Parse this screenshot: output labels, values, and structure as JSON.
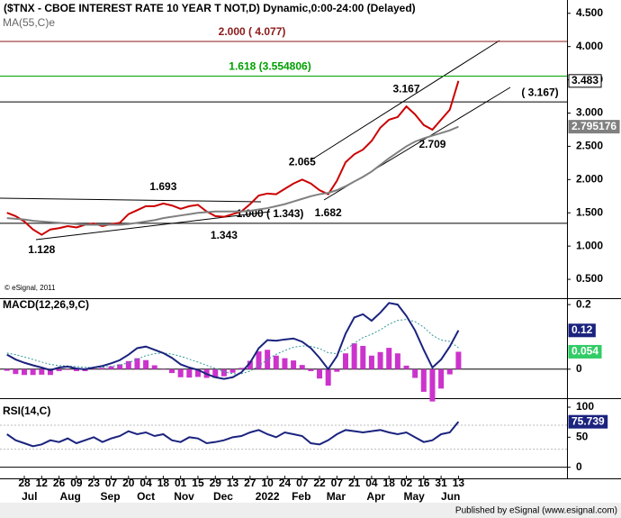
{
  "header": {
    "title": "($TNX - CBOE INTEREST RATE 10 YEAR T NOT,D) Dynamic,0:00-24:00 (Delayed)",
    "copyright": "© eSignal, 2011",
    "footer": "Published by eSignal (www.esignal.com)"
  },
  "chart_data": [
    {
      "type": "line",
      "title": "($TNX - CBOE INTEREST RATE 10 YEAR T NOT,D) Dynamic,0:00-24:00 (Delayed)",
      "x": [
        -2,
        -1,
        0,
        1,
        2,
        3,
        4,
        5,
        6,
        7,
        8,
        9,
        10,
        11,
        12,
        13,
        14,
        15,
        16,
        17,
        18,
        19,
        20,
        21,
        22,
        23,
        24,
        25,
        26,
        27,
        28,
        29,
        30,
        31,
        32,
        33,
        34,
        35,
        36,
        37,
        38,
        39,
        40,
        41,
        42,
        43,
        44,
        45,
        46,
        47,
        48,
        49,
        50
      ],
      "xlim": [
        -2.8,
        62.5
      ],
      "ylim": [
        0.23,
        4.7
      ],
      "yticks": [
        {
          "value": 0.5,
          "label": "0.500"
        },
        {
          "value": 1,
          "label": "1.000"
        },
        {
          "value": 1.5,
          "label": "1.500"
        },
        {
          "value": 2,
          "label": "2.000"
        },
        {
          "value": 2.5,
          "label": "2.500"
        },
        {
          "value": 3,
          "label": "3.000"
        },
        {
          "value": 3.5,
          "label": "3.500"
        },
        {
          "value": 4,
          "label": "4.000"
        },
        {
          "value": 4.5,
          "label": "4.500"
        }
      ],
      "series": [
        {
          "name": "$TNX",
          "color": "#cc0000",
          "style": "line",
          "box_color": "#ffffff",
          "values": [
            1.5,
            1.45,
            1.37,
            1.25,
            1.17,
            1.25,
            1.27,
            1.3,
            1.28,
            1.32,
            1.34,
            1.3,
            1.33,
            1.35,
            1.48,
            1.54,
            1.6,
            1.6,
            1.64,
            1.61,
            1.56,
            1.6,
            1.62,
            1.52,
            1.45,
            1.44,
            1.48,
            1.52,
            1.63,
            1.76,
            1.79,
            1.78,
            1.86,
            1.94,
            2.0,
            1.94,
            1.84,
            1.78,
            1.98,
            2.26,
            2.38,
            2.45,
            2.58,
            2.78,
            2.9,
            2.94,
            3.1,
            2.98,
            2.82,
            2.75,
            2.9,
            3.05,
            3.483
          ]
        },
        {
          "name": "MA(55,C)e",
          "color": "#808080",
          "style": "line",
          "box_color": "#808080",
          "values": [
            1.42,
            1.41,
            1.4,
            1.38,
            1.37,
            1.36,
            1.35,
            1.34,
            1.33,
            1.32,
            1.32,
            1.32,
            1.32,
            1.32,
            1.33,
            1.35,
            1.37,
            1.39,
            1.42,
            1.44,
            1.46,
            1.48,
            1.5,
            1.51,
            1.52,
            1.52,
            1.52,
            1.52,
            1.53,
            1.55,
            1.57,
            1.6,
            1.63,
            1.67,
            1.71,
            1.75,
            1.78,
            1.8,
            1.84,
            1.9,
            1.97,
            2.04,
            2.12,
            2.22,
            2.32,
            2.41,
            2.5,
            2.57,
            2.62,
            2.66,
            2.7,
            2.74,
            2.795176
          ]
        }
      ],
      "levels": [
        {
          "value": 4.077,
          "label": "2.000 ( 4.077)",
          "color": "#8b1a1a"
        },
        {
          "value": 3.554806,
          "label": "1.618 (3.554806)",
          "color": "#00a000"
        },
        {
          "value": 3.167,
          "label": "( 3.167)",
          "color": "#000000"
        },
        {
          "value": 1.343,
          "label": "1.000 ( 1.343)",
          "color": "#000000"
        }
      ],
      "annotations": [
        {
          "label": "3.167",
          "x": 44,
          "y": 3.167,
          "pos": "above"
        },
        {
          "label": "2.709",
          "x": 47,
          "y": 2.709,
          "pos": "below"
        },
        {
          "label": "2.065",
          "x": 32,
          "y": 2.065,
          "pos": "above"
        },
        {
          "label": "1.693",
          "x": 16,
          "y": 1.693,
          "pos": "above"
        },
        {
          "label": "1.682",
          "x": 35,
          "y": 1.682,
          "pos": "below"
        },
        {
          "label": "1.343",
          "x": 23,
          "y": 1.343,
          "pos": "below"
        },
        {
          "label": "1.128",
          "x": 2,
          "y": 1.128,
          "pos": "below"
        }
      ]
    },
    {
      "type": "line",
      "title": "MACD(12,26,9,C)",
      "x": [
        -2,
        -1,
        0,
        1,
        2,
        3,
        4,
        5,
        6,
        7,
        8,
        9,
        10,
        11,
        12,
        13,
        14,
        15,
        16,
        17,
        18,
        19,
        20,
        21,
        22,
        23,
        24,
        25,
        26,
        27,
        28,
        29,
        30,
        31,
        32,
        33,
        34,
        35,
        36,
        37,
        38,
        39,
        40,
        41,
        42,
        43,
        44,
        45,
        46,
        47,
        48,
        49,
        50
      ],
      "xlim": [
        -2.8,
        62.5
      ],
      "ylim": [
        -0.087,
        0.217
      ],
      "yticks": [
        0,
        0.2
      ],
      "series": [
        {
          "name": "MACD",
          "color": "#cc33cc",
          "style": "bar",
          "box_color": "#33cc66",
          "values": [
            -0.005,
            -0.015,
            -0.018,
            -0.018,
            -0.017,
            -0.018,
            -0.006,
            -0.002,
            -0.006,
            -0.006,
            0.0,
            0.004,
            0.009,
            0.015,
            0.025,
            0.034,
            0.028,
            0.012,
            0.0,
            -0.012,
            -0.025,
            -0.026,
            -0.024,
            -0.027,
            -0.027,
            -0.022,
            -0.011,
            0.004,
            0.026,
            0.055,
            0.06,
            0.042,
            0.034,
            0.027,
            0.013,
            -0.006,
            -0.029,
            -0.051,
            -0.008,
            0.049,
            0.08,
            0.072,
            0.042,
            0.053,
            0.066,
            0.049,
            0.011,
            -0.027,
            -0.07,
            -0.1,
            -0.06,
            -0.016,
            0.054
          ]
        },
        {
          "name": "Signal",
          "color": "#339999",
          "style": "dotted",
          "values": [
            0.05,
            0.045,
            0.038,
            0.03,
            0.022,
            0.015,
            0.011,
            0.01,
            0.008,
            0.006,
            0.005,
            0.006,
            0.009,
            0.013,
            0.02,
            0.031,
            0.042,
            0.048,
            0.05,
            0.047,
            0.04,
            0.031,
            0.022,
            0.012,
            0.002,
            -0.008,
            -0.014,
            -0.014,
            -0.006,
            0.01,
            0.03,
            0.046,
            0.058,
            0.068,
            0.072,
            0.071,
            0.064,
            0.051,
            0.048,
            0.061,
            0.08,
            0.098,
            0.108,
            0.122,
            0.139,
            0.151,
            0.154,
            0.147,
            0.13,
            0.105,
            0.09,
            0.086,
            0.066
          ]
        },
        {
          "name": "MACD line",
          "color": "#1a237e",
          "style": "line",
          "box_color": "#1a237e",
          "values": [
            0.045,
            0.03,
            0.02,
            0.012,
            0.005,
            -0.003,
            0.005,
            0.008,
            0.002,
            0.0,
            0.005,
            0.01,
            0.018,
            0.028,
            0.045,
            0.065,
            0.07,
            0.06,
            0.05,
            0.035,
            0.015,
            0.005,
            -0.002,
            -0.015,
            -0.025,
            -0.03,
            -0.025,
            -0.01,
            0.02,
            0.065,
            0.09,
            0.088,
            0.092,
            0.095,
            0.085,
            0.065,
            0.035,
            0.0,
            0.04,
            0.11,
            0.16,
            0.17,
            0.15,
            0.175,
            0.205,
            0.2,
            0.165,
            0.12,
            0.06,
            0.005,
            0.03,
            0.07,
            0.12
          ]
        }
      ]
    },
    {
      "type": "line",
      "title": "RSI(14,C)",
      "x": [
        -2,
        -1,
        0,
        1,
        2,
        3,
        4,
        5,
        6,
        7,
        8,
        9,
        10,
        11,
        12,
        13,
        14,
        15,
        16,
        17,
        18,
        19,
        20,
        21,
        22,
        23,
        24,
        25,
        26,
        27,
        28,
        29,
        30,
        31,
        32,
        33,
        34,
        35,
        36,
        37,
        38,
        39,
        40,
        41,
        42,
        43,
        44,
        45,
        46,
        47,
        48,
        49,
        50
      ],
      "xlim": [
        -2.8,
        62.5
      ],
      "ylim": [
        -17,
        112
      ],
      "yticks": [
        0,
        50,
        100
      ],
      "ref_lines": [
        70,
        30
      ],
      "xticks": [
        {
          "value": 0,
          "label": "28"
        },
        {
          "value": 2,
          "label": "12"
        },
        {
          "value": 4,
          "label": "26"
        },
        {
          "value": 6,
          "label": "09"
        },
        {
          "value": 8,
          "label": "23"
        },
        {
          "value": 10,
          "label": "07"
        },
        {
          "value": 12,
          "label": "20"
        },
        {
          "value": 14,
          "label": "04"
        },
        {
          "value": 16,
          "label": "18"
        },
        {
          "value": 18,
          "label": "01"
        },
        {
          "value": 20,
          "label": "15"
        },
        {
          "value": 22,
          "label": "29"
        },
        {
          "value": 24,
          "label": "13"
        },
        {
          "value": 26,
          "label": "27"
        },
        {
          "value": 28,
          "label": "10"
        },
        {
          "value": 30,
          "label": "24"
        },
        {
          "value": 32,
          "label": "07"
        },
        {
          "value": 34,
          "label": "22"
        },
        {
          "value": 36,
          "label": "07"
        },
        {
          "value": 38,
          "label": "21"
        },
        {
          "value": 40,
          "label": "04"
        },
        {
          "value": 42,
          "label": "18"
        },
        {
          "value": 44,
          "label": "02"
        },
        {
          "value": 46,
          "label": "16"
        },
        {
          "value": 48,
          "label": "31"
        },
        {
          "value": 50,
          "label": "13"
        }
      ],
      "xmonths": [
        {
          "value": 0.6,
          "label": "Jul"
        },
        {
          "value": 5.3,
          "label": "Aug"
        },
        {
          "value": 9.9,
          "label": "Sep"
        },
        {
          "value": 14,
          "label": "Oct"
        },
        {
          "value": 18.4,
          "label": "Nov"
        },
        {
          "value": 22.9,
          "label": "Dec"
        },
        {
          "value": 28,
          "label": "2022"
        },
        {
          "value": 31.9,
          "label": "Feb"
        },
        {
          "value": 35.9,
          "label": "Mar"
        },
        {
          "value": 40.5,
          "label": "Apr"
        },
        {
          "value": 44.9,
          "label": "May"
        },
        {
          "value": 49.1,
          "label": "Jun"
        }
      ],
      "series": [
        {
          "name": "RSI",
          "color": "#1a237e",
          "style": "line",
          "box_color": "#1a237e",
          "values": [
            55,
            45,
            40,
            35,
            38,
            45,
            42,
            48,
            40,
            45,
            50,
            42,
            48,
            52,
            60,
            55,
            58,
            52,
            55,
            45,
            42,
            50,
            48,
            40,
            42,
            45,
            50,
            52,
            58,
            62,
            55,
            50,
            58,
            55,
            52,
            40,
            38,
            45,
            55,
            62,
            60,
            58,
            60,
            62,
            58,
            55,
            58,
            50,
            42,
            45,
            55,
            58,
            75.739
          ]
        }
      ]
    }
  ]
}
